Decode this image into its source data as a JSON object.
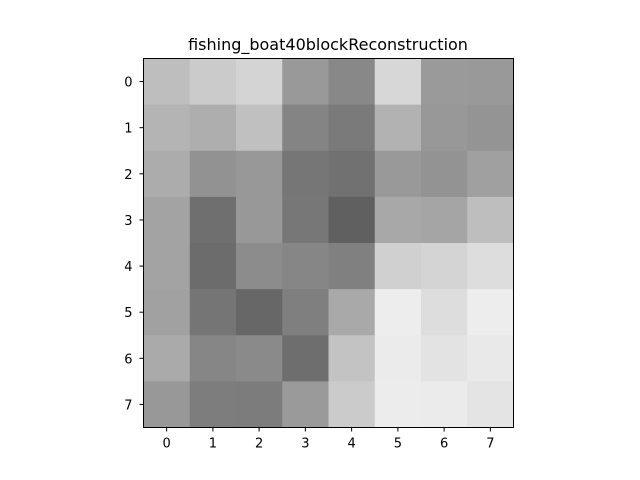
{
  "chart_data": {
    "type": "heatmap",
    "title": "fishing_boat40blockReconstruction",
    "xlabel": "",
    "ylabel": "",
    "x_ticks": [
      "0",
      "1",
      "2",
      "3",
      "4",
      "5",
      "6",
      "7"
    ],
    "y_ticks": [
      "0",
      "1",
      "2",
      "3",
      "4",
      "5",
      "6",
      "7"
    ],
    "colormap": "gray",
    "grid": false,
    "values": [
      [
        190,
        203,
        212,
        153,
        136,
        215,
        154,
        153
      ],
      [
        180,
        174,
        192,
        132,
        122,
        178,
        152,
        148
      ],
      [
        172,
        146,
        152,
        118,
        113,
        153,
        147,
        160
      ],
      [
        163,
        111,
        152,
        119,
        96,
        168,
        165,
        190
      ],
      [
        163,
        108,
        140,
        134,
        128,
        208,
        212,
        221
      ],
      [
        161,
        117,
        103,
        127,
        169,
        237,
        221,
        237
      ],
      [
        170,
        134,
        138,
        110,
        195,
        235,
        227,
        233
      ],
      [
        152,
        125,
        124,
        154,
        203,
        236,
        235,
        228
      ]
    ]
  }
}
